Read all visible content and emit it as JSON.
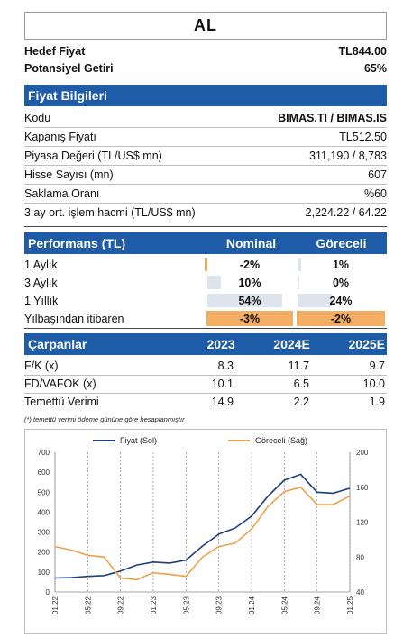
{
  "rating": "AL",
  "target": {
    "label": "Hedef Fiyat",
    "value": "TL844.00",
    "upside_label": "Potansiyel Getiri",
    "upside_value": "65%"
  },
  "price_info": {
    "header": "Fiyat Bilgileri",
    "rows": [
      {
        "label": "Kodu",
        "value": "BIMAS.TI / BIMAS.IS"
      },
      {
        "label": "Kapanış Fiyatı",
        "value": "TL512.50"
      },
      {
        "label": "Piyasa Değeri (TL/US$ mn)",
        "value": "311,190 / 8,783"
      },
      {
        "label": "Hisse Sayısı (mn)",
        "value": "607"
      },
      {
        "label": "Saklama Oranı",
        "value": "%60"
      },
      {
        "label": "3 ay ort. işlem hacmi (TL/US$ mn)",
        "value": "2,224.22 / 64.22"
      }
    ]
  },
  "performance": {
    "header": "Performans (TL)",
    "col_nominal": "Nominal",
    "col_relative": "Göreceli",
    "rows": [
      {
        "label": "1 Aylık",
        "nominal": "-2%",
        "relative": "1%",
        "nominal_val": -2,
        "relative_val": 1
      },
      {
        "label": "3 Aylık",
        "nominal": "10%",
        "relative": "0%",
        "nominal_val": 10,
        "relative_val": 0
      },
      {
        "label": "1 Yıllık",
        "nominal": "54%",
        "relative": "24%",
        "nominal_val": 54,
        "relative_val": 24
      },
      {
        "label": "Yılbaşından itibaren",
        "nominal": "-3%",
        "relative": "-2%",
        "nominal_val": -3,
        "relative_val": -2
      }
    ]
  },
  "multiples": {
    "header": "Çarpanlar",
    "years": [
      "2023",
      "2024E",
      "2025E"
    ],
    "rows": [
      {
        "label": "F/K (x)",
        "values": [
          "8.3",
          "11.7",
          "9.7"
        ]
      },
      {
        "label": "FD/VAFÖK (x)",
        "values": [
          "10.1",
          "6.5",
          "10.0"
        ]
      },
      {
        "label": "Temettü Verimi",
        "values": [
          "14.9",
          "2.2",
          "1.9"
        ]
      }
    ]
  },
  "footnote": "(*) temettü verimi ödeme gününe göre hesaplanmıştır",
  "chart_data": {
    "type": "line",
    "series": [
      {
        "name": "Fiyat (Sol)",
        "color": "#1f3f7a",
        "axis": "left",
        "x": [
          "01.22",
          "03.22",
          "05.22",
          "07.22",
          "09.22",
          "11.22",
          "01.23",
          "03.23",
          "05.23",
          "07.23",
          "09.23",
          "11.23",
          "01.24",
          "03.24",
          "05.24",
          "07.24",
          "09.24",
          "11.24",
          "01.25"
        ],
        "values": [
          70,
          72,
          78,
          82,
          105,
          135,
          150,
          145,
          160,
          230,
          290,
          320,
          380,
          480,
          560,
          590,
          500,
          495,
          520
        ]
      },
      {
        "name": "Göreceli (Sağ)",
        "color": "#f0a04b",
        "axis": "right",
        "x": [
          "01.22",
          "03.22",
          "05.22",
          "07.22",
          "09.22",
          "11.22",
          "01.23",
          "03.23",
          "05.23",
          "07.23",
          "09.23",
          "11.23",
          "01.24",
          "03.24",
          "05.24",
          "07.24",
          "09.24",
          "11.24",
          "01.25"
        ],
        "values": [
          92,
          88,
          82,
          80,
          56,
          54,
          62,
          60,
          58,
          80,
          92,
          96,
          112,
          138,
          155,
          160,
          140,
          140,
          150
        ]
      }
    ],
    "x_ticks": [
      "01.22",
      "05.22",
      "09.22",
      "01.23",
      "05.23",
      "09.23",
      "01.24",
      "05.24",
      "09.24",
      "01.25"
    ],
    "y_left": {
      "min": 0,
      "max": 700,
      "ticks": [
        "0",
        "100",
        "200",
        "300",
        "400",
        "500",
        "600",
        "700"
      ]
    },
    "y_right": {
      "min": 40,
      "max": 200,
      "ticks": [
        "40",
        "80",
        "120",
        "160",
        "200"
      ]
    },
    "legend_placement": "top"
  }
}
